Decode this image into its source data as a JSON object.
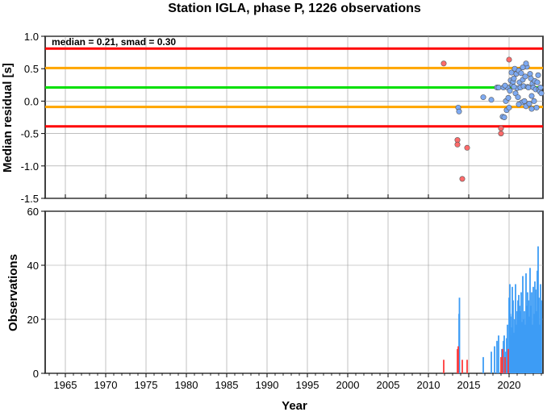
{
  "chart_data": {
    "type": "scatter+bar",
    "title": "Station IGLA, phase P, 1226 observations",
    "xlabel": "Year",
    "x_ticks": [
      1965,
      1970,
      1975,
      1980,
      1985,
      1990,
      1995,
      2000,
      2005,
      2010,
      2015,
      2020
    ],
    "xlim": [
      1962.5,
      2024.2
    ],
    "residual_panel": {
      "ylabel": "Median residual [s]",
      "ylim": [
        -1.5,
        1.0
      ],
      "y_ticks": [
        1.0,
        0.5,
        0.0,
        -0.5,
        -1.0,
        -1.5
      ],
      "y_tick_labels": [
        "1.0",
        "0.5",
        "0.0",
        "-0.5",
        "-1.0",
        "-1.5"
      ],
      "stats_text": "median = 0.21, smad = 0.30",
      "median": 0.21,
      "lines": [
        {
          "y": 0.81,
          "color": "#ff0000"
        },
        {
          "y": 0.51,
          "color": "#ffa500"
        },
        {
          "y": 0.21,
          "color": "#00e000"
        },
        {
          "y": -0.09,
          "color": "#ffa500"
        },
        {
          "y": -0.39,
          "color": "#ff0000"
        }
      ],
      "outlier_points": [
        [
          2011.9,
          0.58
        ],
        [
          2013.6,
          -0.6
        ],
        [
          2013.6,
          -0.67
        ],
        [
          2014.2,
          -1.2
        ],
        [
          2014.8,
          -0.72
        ],
        [
          2019.0,
          -0.42
        ],
        [
          2019.0,
          -0.5
        ],
        [
          2020.0,
          0.64
        ]
      ],
      "inlier_points": [
        [
          2013.7,
          -0.1
        ],
        [
          2013.8,
          -0.16
        ],
        [
          2016.8,
          0.06
        ],
        [
          2017.8,
          0.02
        ],
        [
          2018.5,
          0.21
        ],
        [
          2018.7,
          0.21
        ],
        [
          2019.2,
          -0.24
        ],
        [
          2019.3,
          0.21
        ],
        [
          2019.4,
          -0.25
        ],
        [
          2019.6,
          0.0
        ],
        [
          2019.7,
          -0.14
        ],
        [
          2019.8,
          0.21
        ],
        [
          2019.9,
          0.05
        ],
        [
          2020.0,
          -0.1
        ],
        [
          2020.1,
          0.16
        ],
        [
          2020.2,
          0.32
        ],
        [
          2020.3,
          0.44
        ],
        [
          2020.4,
          0.25
        ],
        [
          2020.5,
          0.3
        ],
        [
          2020.6,
          0.35
        ],
        [
          2020.7,
          0.5
        ],
        [
          2020.8,
          0.12
        ],
        [
          2020.9,
          0.42
        ],
        [
          2021.0,
          0.2
        ],
        [
          2021.1,
          0.06
        ],
        [
          2021.2,
          0.47
        ],
        [
          2021.3,
          0.29
        ],
        [
          2021.4,
          0.21
        ],
        [
          2021.5,
          0.43
        ],
        [
          2021.6,
          -0.02
        ],
        [
          2021.7,
          0.33
        ],
        [
          2021.8,
          0.23
        ],
        [
          2021.9,
          0.0
        ],
        [
          2022.0,
          0.38
        ],
        [
          2022.1,
          -0.08
        ],
        [
          2022.2,
          0.53
        ],
        [
          2022.3,
          0.22
        ],
        [
          2022.4,
          0.21
        ],
        [
          2022.5,
          -0.04
        ],
        [
          2022.6,
          0.42
        ],
        [
          2022.7,
          0.35
        ],
        [
          2022.8,
          0.08
        ],
        [
          2022.9,
          0.27
        ],
        [
          2023.0,
          0.21
        ],
        [
          2023.1,
          0.0
        ],
        [
          2023.2,
          0.31
        ],
        [
          2023.3,
          0.18
        ],
        [
          2023.4,
          -0.1
        ],
        [
          2023.5,
          0.29
        ],
        [
          2023.6,
          0.4
        ],
        [
          2023.7,
          0.18
        ],
        [
          2023.8,
          0.15
        ],
        [
          2023.9,
          0.21
        ],
        [
          2024.0,
          0.12
        ],
        [
          2022.1,
          0.58
        ],
        [
          2021.2,
          -0.05
        ],
        [
          2022.8,
          -0.12
        ],
        [
          2020.6,
          0.22
        ],
        [
          2021.7,
          0.52
        ],
        [
          2019.5,
          0.24
        ]
      ]
    },
    "observation_panel": {
      "ylabel": "Observations",
      "ylim": [
        0,
        60
      ],
      "y_ticks": [
        0,
        20,
        40,
        60
      ],
      "y_tick_labels": [
        "0",
        "20",
        "40",
        "60"
      ],
      "outlier_bars": [
        [
          2011.9,
          5
        ],
        [
          2013.6,
          9
        ],
        [
          2013.7,
          10
        ],
        [
          2014.2,
          5
        ],
        [
          2014.8,
          5
        ],
        [
          2019.0,
          6
        ],
        [
          2019.2,
          9
        ],
        [
          2019.5,
          6
        ],
        [
          2019.9,
          9
        ]
      ],
      "inlier_bars": [
        [
          2013.7,
          5
        ],
        [
          2013.8,
          22
        ],
        [
          2013.85,
          28
        ],
        [
          2016.8,
          6
        ],
        [
          2017.8,
          8
        ],
        [
          2018.2,
          10
        ],
        [
          2018.5,
          12
        ],
        [
          2018.7,
          14
        ],
        [
          2019.1,
          9
        ],
        [
          2019.3,
          12
        ],
        [
          2019.4,
          14
        ],
        [
          2019.6,
          8
        ],
        [
          2019.7,
          13
        ],
        [
          2019.8,
          18
        ],
        [
          2020.0,
          28
        ],
        [
          2020.1,
          33
        ],
        [
          2020.15,
          22
        ],
        [
          2020.2,
          21
        ],
        [
          2020.3,
          14
        ],
        [
          2020.35,
          17
        ],
        [
          2020.4,
          32
        ],
        [
          2020.5,
          27
        ],
        [
          2020.6,
          15
        ],
        [
          2020.7,
          20
        ],
        [
          2020.8,
          33
        ],
        [
          2020.9,
          18
        ],
        [
          2021.0,
          23
        ],
        [
          2021.1,
          27
        ],
        [
          2021.2,
          29
        ],
        [
          2021.3,
          25
        ],
        [
          2021.4,
          23
        ],
        [
          2021.5,
          30
        ],
        [
          2021.6,
          19
        ],
        [
          2021.7,
          36
        ],
        [
          2021.8,
          20
        ],
        [
          2021.9,
          23
        ],
        [
          2022.0,
          18
        ],
        [
          2022.1,
          37
        ],
        [
          2022.2,
          25
        ],
        [
          2022.3,
          30
        ],
        [
          2022.4,
          27
        ],
        [
          2022.5,
          21
        ],
        [
          2022.6,
          39
        ],
        [
          2022.7,
          25
        ],
        [
          2022.8,
          30
        ],
        [
          2022.9,
          18
        ],
        [
          2023.0,
          32
        ],
        [
          2023.1,
          22
        ],
        [
          2023.2,
          34
        ],
        [
          2023.3,
          31
        ],
        [
          2023.4,
          23
        ],
        [
          2023.5,
          38
        ],
        [
          2023.6,
          47
        ],
        [
          2023.7,
          28
        ],
        [
          2023.8,
          18
        ],
        [
          2023.9,
          33
        ],
        [
          2024.0,
          27
        ]
      ]
    },
    "colors": {
      "outlier": "#ff6b6b",
      "outlier_bar": "#ff3b3b",
      "inlier": "#7eaaf2",
      "inlier_bar": "#3d9cf5",
      "grid": "#999999"
    }
  }
}
